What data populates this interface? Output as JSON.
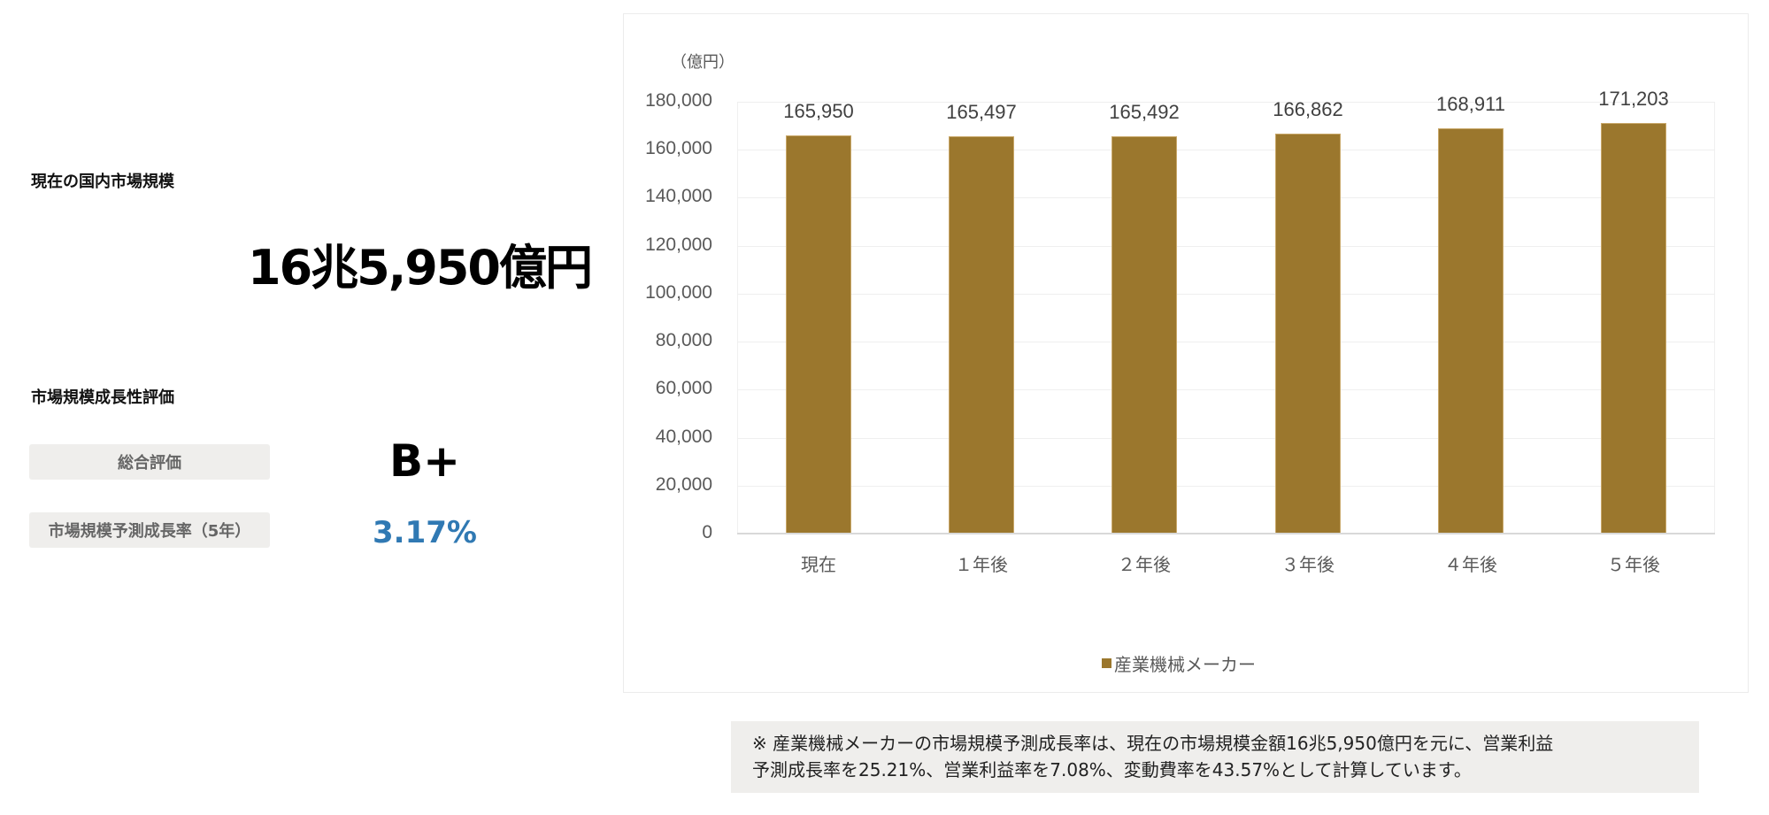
{
  "colors": {
    "bar": "#9b772d",
    "rate_text": "#3079b3",
    "label_box_bg": "#efeeec",
    "note_bg": "#efeeec"
  },
  "market_size": {
    "title": "現在の国内市場規模",
    "value": "16兆5,950億円"
  },
  "evaluation": {
    "title": "市場規模成長性評価",
    "overall_label": "総合評価",
    "overall_grade": "B+",
    "growth_label": "市場規模予測成長率（5年）",
    "growth_rate": "3.17%"
  },
  "chart_data": {
    "type": "bar",
    "title": "",
    "xlabel": "",
    "ylabel": "（億円）",
    "categories": [
      "現在",
      "１年後",
      "２年後",
      "３年後",
      "４年後",
      "５年後"
    ],
    "series": [
      {
        "name": "産業機械メーカー",
        "values": [
          165950,
          165497,
          165492,
          166862,
          168911,
          171203
        ]
      }
    ],
    "data_labels": [
      "165,950",
      "165,497",
      "165,492",
      "166,862",
      "168,911",
      "171,203"
    ],
    "yticks": [
      0,
      20000,
      40000,
      60000,
      80000,
      100000,
      120000,
      140000,
      160000,
      180000
    ],
    "ytick_labels": [
      "0",
      "20,000",
      "40,000",
      "60,000",
      "80,000",
      "100,000",
      "120,000",
      "140,000",
      "160,000",
      "180,000"
    ],
    "ylim": [
      0,
      180000
    ],
    "grid": true,
    "legend_position": "bottom"
  },
  "note": {
    "line1": "※ 産業機械メーカーの市場規模予測成長率は、現在の市場規模金額16兆5,950億円を元に、営業利益",
    "line2": "予測成長率を25.21%、営業利益率を7.08%、変動費率を43.57%として計算しています。"
  }
}
